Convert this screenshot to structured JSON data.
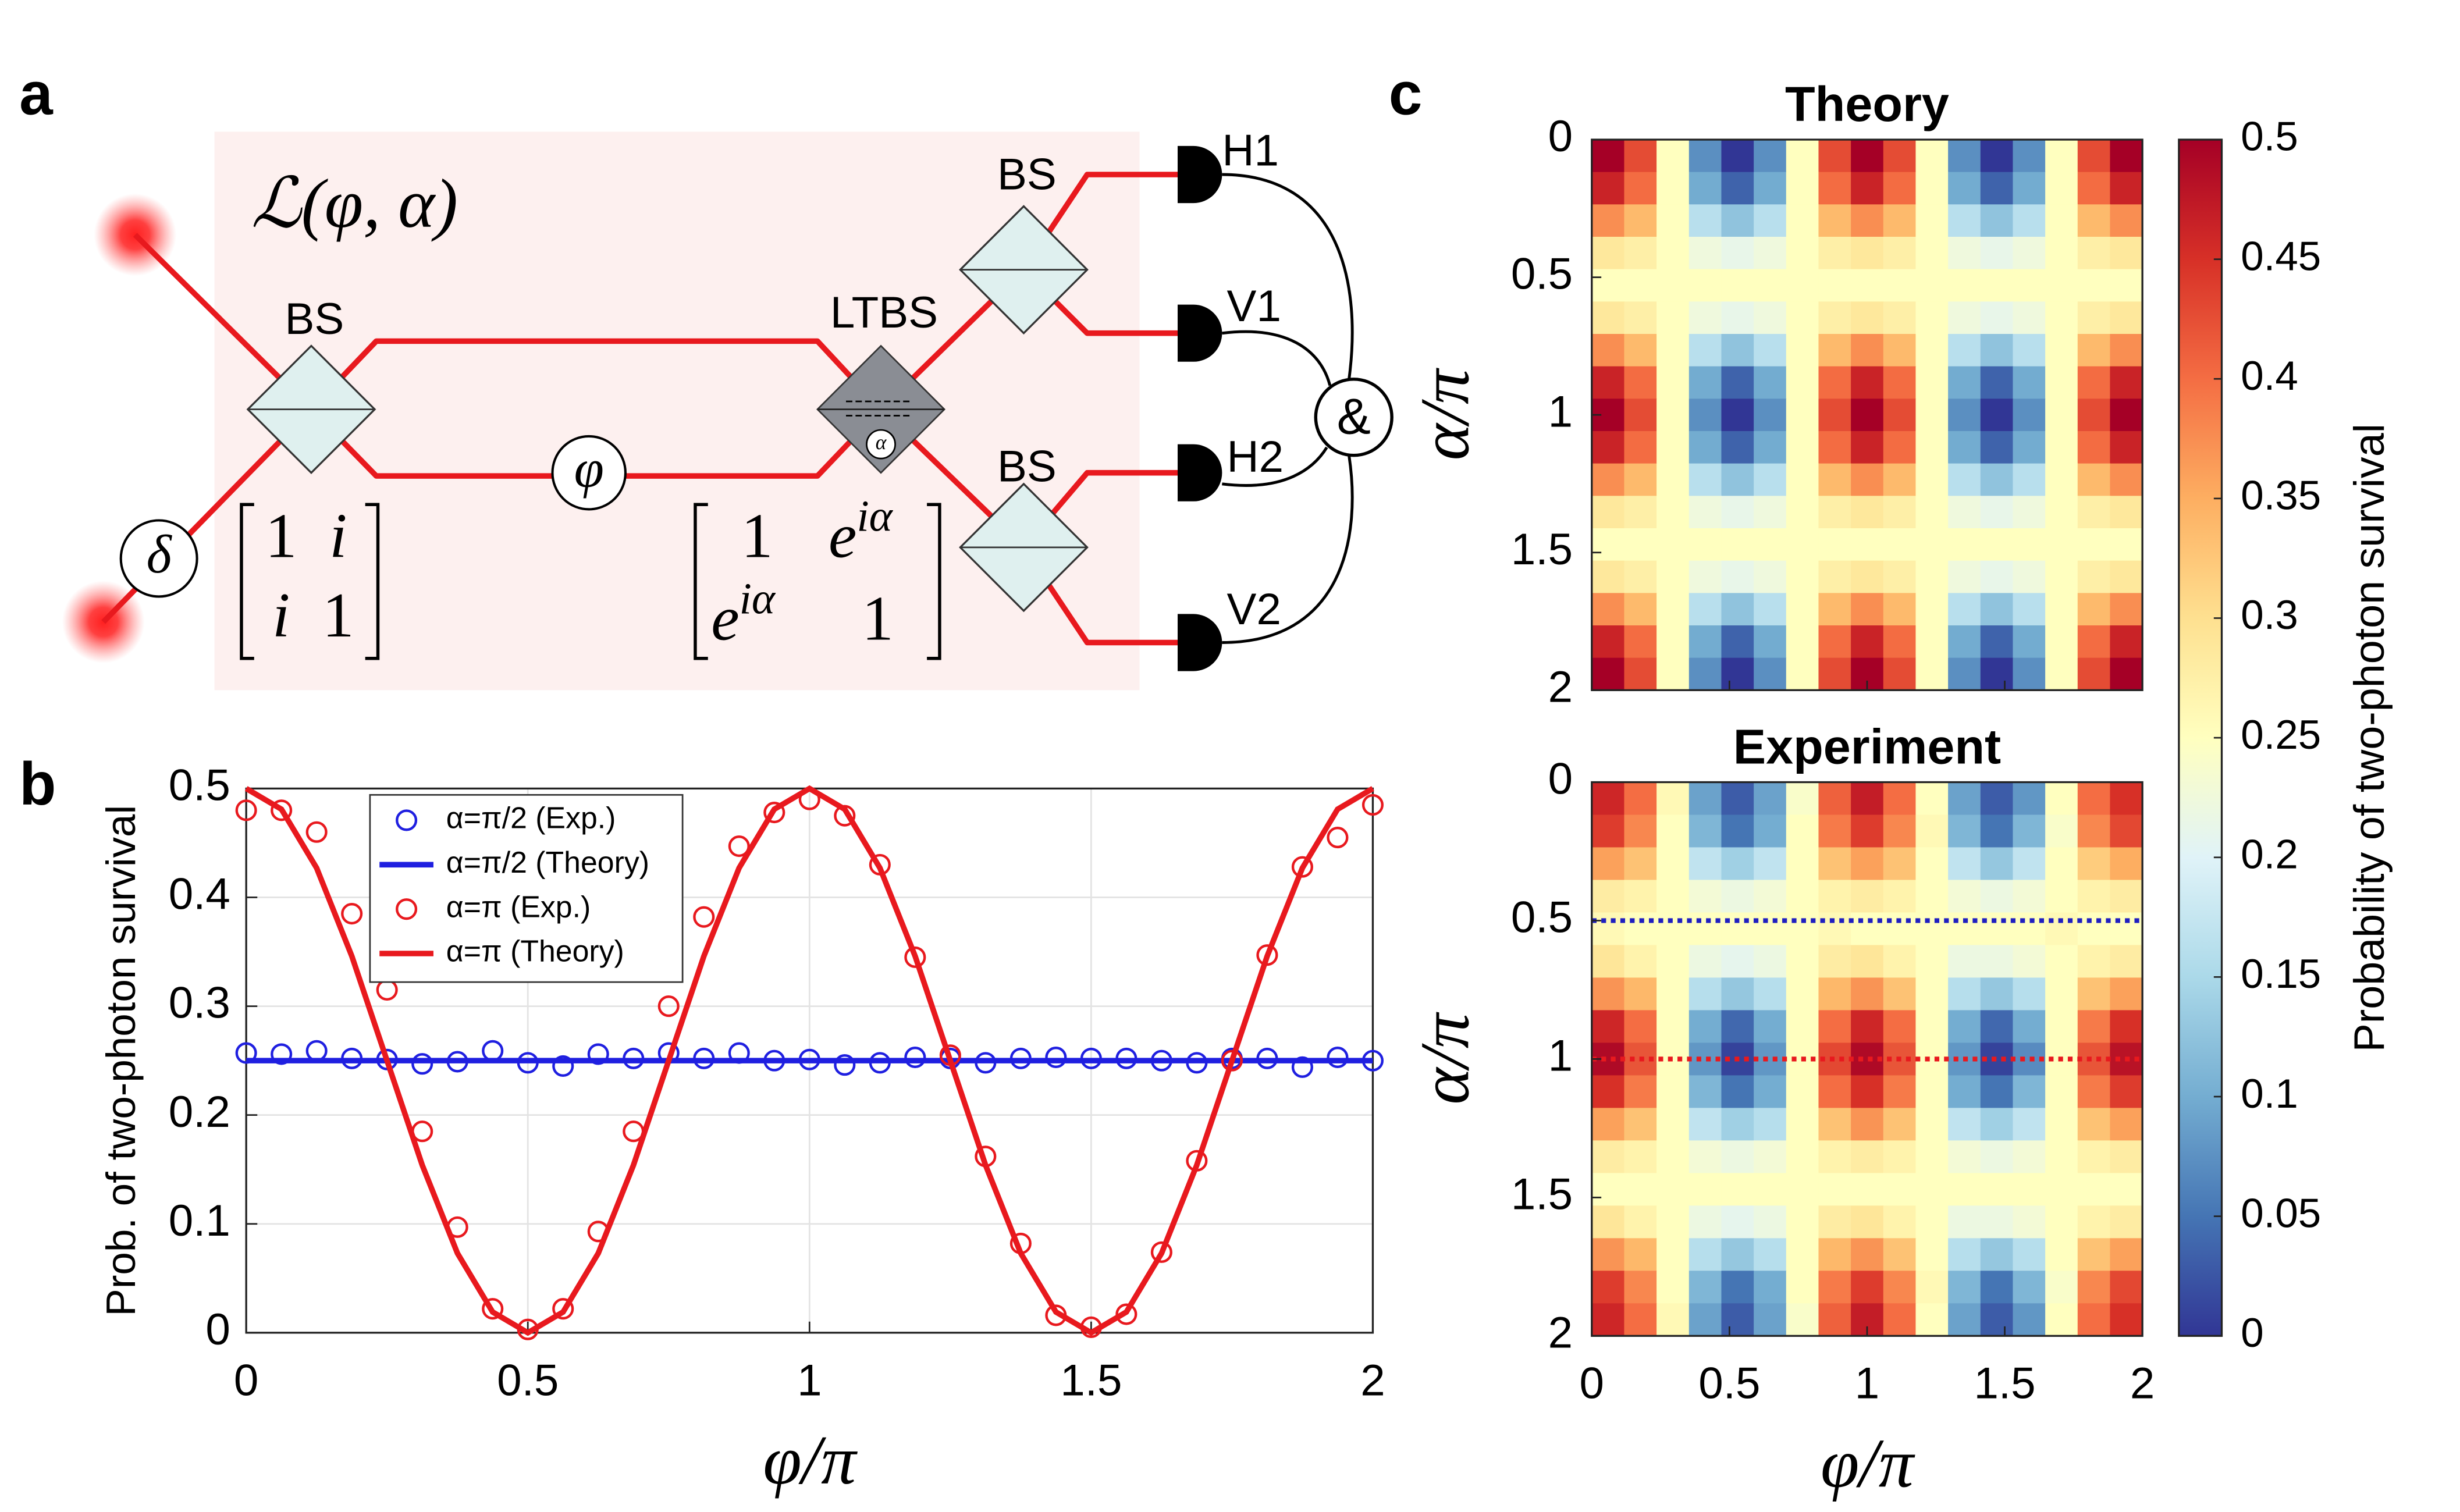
{
  "panel_labels": [
    "a",
    "b",
    "c"
  ],
  "diagram": {
    "title": "ℒ(φ, α)",
    "beam_splitters": [
      "BS",
      "BS",
      "BS"
    ],
    "ltbs": "LTBS",
    "detectors": [
      "H1",
      "V1",
      "H2",
      "V2"
    ],
    "coincidence": "&",
    "phase": "φ",
    "delay": "δ",
    "ltbs_phase": "α",
    "matrix1": [
      [
        "1",
        "i"
      ],
      [
        "i",
        "1"
      ]
    ],
    "matrix2": [
      [
        {
          "base": "1"
        },
        {
          "base": "e",
          "sup": "iα"
        }
      ],
      [
        {
          "base": "e",
          "sup": "iα"
        },
        {
          "base": "1"
        }
      ]
    ]
  },
  "colorbar": {
    "label": "Probability of two-photon survival",
    "clim": [
      0,
      0.5
    ],
    "ticks": [
      0,
      0.05,
      0.1,
      0.15,
      0.2,
      0.25,
      0.3,
      0.35,
      0.4,
      0.45,
      0.5
    ],
    "colormap": [
      "#313695",
      "#4575b4",
      "#74add1",
      "#abd9e9",
      "#e0f3f8",
      "#ffffbf",
      "#fee090",
      "#fdae61",
      "#f46d43",
      "#d73027",
      "#a50026"
    ]
  },
  "chart_data": [
    {
      "type": "line",
      "xlabel": "φ/π",
      "ylabel": "Prob. of two-photon survival",
      "xlim": [
        0,
        2
      ],
      "ylim": [
        0,
        0.5
      ],
      "xticks": [
        0,
        0.5,
        1,
        1.5,
        2
      ],
      "yticks": [
        0,
        0.1,
        0.2,
        0.3,
        0.4,
        0.5
      ],
      "grid": true,
      "legend": "upper left",
      "x": [
        0,
        0.0625,
        0.125,
        0.1875,
        0.25,
        0.3125,
        0.375,
        0.4375,
        0.5,
        0.5625,
        0.625,
        0.6875,
        0.75,
        0.8125,
        0.875,
        0.9375,
        1,
        1.0625,
        1.125,
        1.1875,
        1.25,
        1.3125,
        1.375,
        1.4375,
        1.5,
        1.5625,
        1.625,
        1.6875,
        1.75,
        1.8125,
        1.875,
        1.9375,
        2
      ],
      "series": [
        {
          "name": "α=π/2 (Exp.)",
          "color": "#1f1fe0",
          "mode": "markers",
          "values": [
            0.257,
            0.256,
            0.259,
            0.252,
            0.251,
            0.247,
            0.249,
            0.259,
            0.248,
            0.245,
            0.256,
            0.252,
            0.257,
            0.252,
            0.257,
            0.25,
            0.251,
            0.246,
            0.248,
            0.253,
            0.252,
            0.248,
            0.252,
            0.253,
            0.252,
            0.252,
            0.25,
            0.248,
            0.252,
            0.252,
            0.244,
            0.253,
            0.25
          ]
        },
        {
          "name": "α=π/2 (Theory)",
          "color": "#1f1fe0",
          "mode": "line",
          "values": [
            0.25,
            0.25,
            0.25,
            0.25,
            0.25,
            0.25,
            0.25,
            0.25,
            0.25,
            0.25,
            0.25,
            0.25,
            0.25,
            0.25,
            0.25,
            0.25,
            0.25,
            0.25,
            0.25,
            0.25,
            0.25,
            0.25,
            0.25,
            0.25,
            0.25,
            0.25,
            0.25,
            0.25,
            0.25,
            0.25,
            0.25,
            0.25,
            0.25
          ]
        },
        {
          "name": "α=π (Exp.)",
          "color": "#e8191e",
          "mode": "markers",
          "values": [
            0.48,
            0.48,
            0.46,
            0.385,
            0.315,
            0.185,
            0.097,
            0.022,
            0.003,
            0.022,
            0.093,
            0.185,
            0.3,
            0.382,
            0.447,
            0.478,
            0.49,
            0.475,
            0.43,
            0.345,
            0.255,
            0.162,
            0.082,
            0.016,
            0.005,
            0.017,
            0.074,
            0.158,
            0.25,
            0.347,
            0.428,
            0.455,
            0.485
          ]
        },
        {
          "name": "α=π (Theory)",
          "color": "#e8191e",
          "mode": "line",
          "values": [
            0.5,
            0.481,
            0.427,
            0.346,
            0.25,
            0.154,
            0.073,
            0.019,
            0,
            0.019,
            0.073,
            0.154,
            0.25,
            0.346,
            0.427,
            0.481,
            0.5,
            0.481,
            0.427,
            0.346,
            0.25,
            0.154,
            0.073,
            0.019,
            0,
            0.019,
            0.073,
            0.154,
            0.25,
            0.346,
            0.427,
            0.481,
            0.5
          ]
        }
      ]
    },
    {
      "type": "heatmap",
      "title": "Theory",
      "ylabel": "α/π",
      "xlim": [
        0,
        2
      ],
      "ylim": [
        0,
        2
      ],
      "xticks": [
        0,
        0.5,
        1,
        1.5,
        2
      ],
      "yticks": [
        0,
        0.5,
        1,
        1.5,
        2
      ],
      "z": [
        [
          0.5,
          0.427,
          0.25,
          0.073,
          0,
          0.073,
          0.25,
          0.427,
          0.5,
          0.427,
          0.25,
          0.073,
          0,
          0.073,
          0.25,
          0.427,
          0.5
        ],
        [
          0.464,
          0.401,
          0.25,
          0.099,
          0.036,
          0.099,
          0.25,
          0.401,
          0.464,
          0.401,
          0.25,
          0.099,
          0.036,
          0.099,
          0.25,
          0.401,
          0.464
        ],
        [
          0.375,
          0.338,
          0.25,
          0.162,
          0.125,
          0.162,
          0.25,
          0.338,
          0.375,
          0.338,
          0.25,
          0.162,
          0.125,
          0.162,
          0.25,
          0.338,
          0.375
        ],
        [
          0.287,
          0.276,
          0.25,
          0.224,
          0.213,
          0.224,
          0.25,
          0.276,
          0.287,
          0.276,
          0.25,
          0.224,
          0.213,
          0.224,
          0.25,
          0.276,
          0.287
        ],
        [
          0.25,
          0.25,
          0.25,
          0.25,
          0.25,
          0.25,
          0.25,
          0.25,
          0.25,
          0.25,
          0.25,
          0.25,
          0.25,
          0.25,
          0.25,
          0.25,
          0.25
        ],
        [
          0.287,
          0.276,
          0.25,
          0.224,
          0.213,
          0.224,
          0.25,
          0.276,
          0.287,
          0.276,
          0.25,
          0.224,
          0.213,
          0.224,
          0.25,
          0.276,
          0.287
        ],
        [
          0.375,
          0.338,
          0.25,
          0.162,
          0.125,
          0.162,
          0.25,
          0.338,
          0.375,
          0.338,
          0.25,
          0.162,
          0.125,
          0.162,
          0.25,
          0.338,
          0.375
        ],
        [
          0.464,
          0.401,
          0.25,
          0.099,
          0.036,
          0.099,
          0.25,
          0.401,
          0.464,
          0.401,
          0.25,
          0.099,
          0.036,
          0.099,
          0.25,
          0.401,
          0.464
        ],
        [
          0.5,
          0.427,
          0.25,
          0.073,
          0,
          0.073,
          0.25,
          0.427,
          0.5,
          0.427,
          0.25,
          0.073,
          0,
          0.073,
          0.25,
          0.427,
          0.5
        ],
        [
          0.464,
          0.401,
          0.25,
          0.099,
          0.036,
          0.099,
          0.25,
          0.401,
          0.464,
          0.401,
          0.25,
          0.099,
          0.036,
          0.099,
          0.25,
          0.401,
          0.464
        ],
        [
          0.375,
          0.338,
          0.25,
          0.162,
          0.125,
          0.162,
          0.25,
          0.338,
          0.375,
          0.338,
          0.25,
          0.162,
          0.125,
          0.162,
          0.25,
          0.338,
          0.375
        ],
        [
          0.287,
          0.276,
          0.25,
          0.224,
          0.213,
          0.224,
          0.25,
          0.276,
          0.287,
          0.276,
          0.25,
          0.224,
          0.213,
          0.224,
          0.25,
          0.276,
          0.287
        ],
        [
          0.25,
          0.25,
          0.25,
          0.25,
          0.25,
          0.25,
          0.25,
          0.25,
          0.25,
          0.25,
          0.25,
          0.25,
          0.25,
          0.25,
          0.25,
          0.25,
          0.25
        ],
        [
          0.287,
          0.276,
          0.25,
          0.224,
          0.213,
          0.224,
          0.25,
          0.276,
          0.287,
          0.276,
          0.25,
          0.224,
          0.213,
          0.224,
          0.25,
          0.276,
          0.287
        ],
        [
          0.375,
          0.338,
          0.25,
          0.162,
          0.125,
          0.162,
          0.25,
          0.338,
          0.375,
          0.338,
          0.25,
          0.162,
          0.125,
          0.162,
          0.25,
          0.338,
          0.375
        ],
        [
          0.464,
          0.401,
          0.25,
          0.099,
          0.036,
          0.099,
          0.25,
          0.401,
          0.464,
          0.401,
          0.25,
          0.099,
          0.036,
          0.099,
          0.25,
          0.401,
          0.464
        ],
        [
          0.5,
          0.427,
          0.25,
          0.073,
          0,
          0.073,
          0.25,
          0.427,
          0.5,
          0.427,
          0.25,
          0.073,
          0,
          0.073,
          0.25,
          0.427,
          0.5
        ]
      ]
    },
    {
      "type": "heatmap",
      "title": "Experiment",
      "xlabel": "φ/π",
      "ylabel": "α/π",
      "xlim": [
        0,
        2
      ],
      "ylim": [
        0,
        2
      ],
      "xticks": [
        0,
        0.5,
        1,
        1.5,
        2
      ],
      "yticks": [
        0,
        0.5,
        1,
        1.5,
        2
      ],
      "hlines": [
        {
          "value": 0.5,
          "color": "#1f1fc0"
        },
        {
          "value": 1,
          "color": "#e8191e"
        }
      ],
      "z": [
        [
          0.46,
          0.4,
          0.26,
          0.09,
          0.03,
          0.09,
          0.24,
          0.41,
          0.47,
          0.4,
          0.25,
          0.09,
          0.03,
          0.08,
          0.25,
          0.4,
          0.45
        ],
        [
          0.44,
          0.38,
          0.25,
          0.11,
          0.05,
          0.1,
          0.25,
          0.39,
          0.44,
          0.38,
          0.26,
          0.11,
          0.05,
          0.11,
          0.24,
          0.38,
          0.43
        ],
        [
          0.36,
          0.33,
          0.25,
          0.17,
          0.14,
          0.17,
          0.25,
          0.33,
          0.36,
          0.33,
          0.25,
          0.17,
          0.13,
          0.17,
          0.25,
          0.32,
          0.35
        ],
        [
          0.28,
          0.27,
          0.25,
          0.23,
          0.22,
          0.23,
          0.25,
          0.27,
          0.28,
          0.27,
          0.25,
          0.23,
          0.22,
          0.23,
          0.25,
          0.27,
          0.28
        ],
        [
          0.26,
          0.25,
          0.25,
          0.25,
          0.25,
          0.25,
          0.25,
          0.26,
          0.25,
          0.25,
          0.25,
          0.25,
          0.25,
          0.25,
          0.26,
          0.25,
          0.25
        ],
        [
          0.29,
          0.27,
          0.25,
          0.22,
          0.21,
          0.22,
          0.25,
          0.28,
          0.29,
          0.27,
          0.25,
          0.22,
          0.22,
          0.23,
          0.25,
          0.27,
          0.28
        ],
        [
          0.37,
          0.34,
          0.25,
          0.16,
          0.13,
          0.16,
          0.25,
          0.34,
          0.37,
          0.33,
          0.25,
          0.16,
          0.13,
          0.16,
          0.25,
          0.33,
          0.36
        ],
        [
          0.46,
          0.4,
          0.25,
          0.1,
          0.04,
          0.1,
          0.25,
          0.4,
          0.46,
          0.4,
          0.25,
          0.1,
          0.04,
          0.1,
          0.25,
          0.39,
          0.45
        ],
        [
          0.49,
          0.42,
          0.25,
          0.08,
          0.01,
          0.08,
          0.25,
          0.43,
          0.49,
          0.42,
          0.25,
          0.08,
          0.01,
          0.07,
          0.25,
          0.42,
          0.48
        ],
        [
          0.45,
          0.39,
          0.25,
          0.11,
          0.05,
          0.1,
          0.25,
          0.4,
          0.45,
          0.39,
          0.25,
          0.1,
          0.05,
          0.11,
          0.25,
          0.39,
          0.44
        ],
        [
          0.36,
          0.33,
          0.25,
          0.17,
          0.14,
          0.16,
          0.25,
          0.33,
          0.37,
          0.33,
          0.25,
          0.17,
          0.14,
          0.17,
          0.25,
          0.33,
          0.36
        ],
        [
          0.28,
          0.27,
          0.25,
          0.23,
          0.22,
          0.23,
          0.25,
          0.27,
          0.28,
          0.27,
          0.25,
          0.23,
          0.22,
          0.23,
          0.25,
          0.27,
          0.28
        ],
        [
          0.25,
          0.25,
          0.25,
          0.25,
          0.25,
          0.25,
          0.25,
          0.25,
          0.25,
          0.25,
          0.25,
          0.25,
          0.25,
          0.25,
          0.25,
          0.25,
          0.25
        ],
        [
          0.29,
          0.27,
          0.25,
          0.22,
          0.21,
          0.22,
          0.25,
          0.28,
          0.29,
          0.27,
          0.25,
          0.22,
          0.22,
          0.23,
          0.25,
          0.27,
          0.28
        ],
        [
          0.37,
          0.34,
          0.25,
          0.16,
          0.13,
          0.16,
          0.25,
          0.34,
          0.37,
          0.33,
          0.25,
          0.16,
          0.13,
          0.16,
          0.25,
          0.33,
          0.36
        ],
        [
          0.44,
          0.38,
          0.25,
          0.11,
          0.05,
          0.1,
          0.25,
          0.39,
          0.44,
          0.38,
          0.26,
          0.11,
          0.05,
          0.11,
          0.24,
          0.38,
          0.43
        ],
        [
          0.46,
          0.4,
          0.26,
          0.09,
          0.03,
          0.09,
          0.24,
          0.41,
          0.47,
          0.4,
          0.25,
          0.09,
          0.03,
          0.08,
          0.25,
          0.4,
          0.45
        ]
      ]
    }
  ]
}
